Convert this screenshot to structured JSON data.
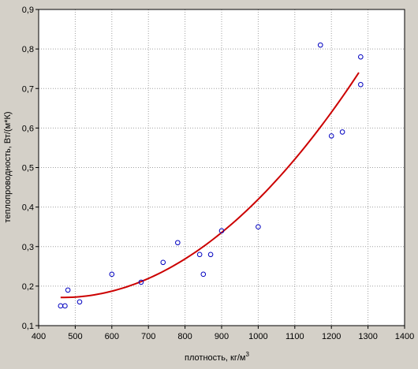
{
  "chart_data": {
    "type": "scatter",
    "xlabel": "плотность, кг/м",
    "xlabel_superscript": "3",
    "ylabel": "теплопроводность,  Вт/(м*К)",
    "xlim": [
      400,
      1400
    ],
    "ylim": [
      0.1,
      0.9
    ],
    "xticks": [
      "400",
      "500",
      "600",
      "700",
      "800",
      "900",
      "1000",
      "1100",
      "1200",
      "1300",
      "1400"
    ],
    "yticks": [
      "0,1",
      "0,2",
      "0,3",
      "0,4",
      "0,5",
      "0,6",
      "0,7",
      "0,8",
      "0,9"
    ],
    "grid": true,
    "points": [
      {
        "x": 460,
        "y": 0.15
      },
      {
        "x": 472,
        "y": 0.15
      },
      {
        "x": 480,
        "y": 0.19
      },
      {
        "x": 512,
        "y": 0.16
      },
      {
        "x": 600,
        "y": 0.23
      },
      {
        "x": 680,
        "y": 0.21
      },
      {
        "x": 740,
        "y": 0.26
      },
      {
        "x": 780,
        "y": 0.31
      },
      {
        "x": 840,
        "y": 0.28
      },
      {
        "x": 850,
        "y": 0.23
      },
      {
        "x": 870,
        "y": 0.28
      },
      {
        "x": 900,
        "y": 0.34
      },
      {
        "x": 1000,
        "y": 0.35
      },
      {
        "x": 1170,
        "y": 0.81
      },
      {
        "x": 1200,
        "y": 0.58
      },
      {
        "x": 1230,
        "y": 0.59
      },
      {
        "x": 1280,
        "y": 0.78
      },
      {
        "x": 1280,
        "y": 0.71
      }
    ],
    "fit": {
      "type": "quadratic",
      "x_range": [
        460,
        1275
      ],
      "points": [
        {
          "x": 460,
          "y": 0.171
        },
        {
          "x": 600,
          "y": 0.186
        },
        {
          "x": 700,
          "y": 0.22
        },
        {
          "x": 800,
          "y": 0.27
        },
        {
          "x": 900,
          "y": 0.338
        },
        {
          "x": 1000,
          "y": 0.42
        },
        {
          "x": 1100,
          "y": 0.518
        },
        {
          "x": 1200,
          "y": 0.635
        },
        {
          "x": 1275,
          "y": 0.745
        }
      ]
    },
    "colors": {
      "background": "#d4d0c8",
      "plot_background": "#ffffff",
      "grid": "#a0a0a0",
      "point": "#0000c0",
      "fit_line": "#cc0000"
    }
  }
}
